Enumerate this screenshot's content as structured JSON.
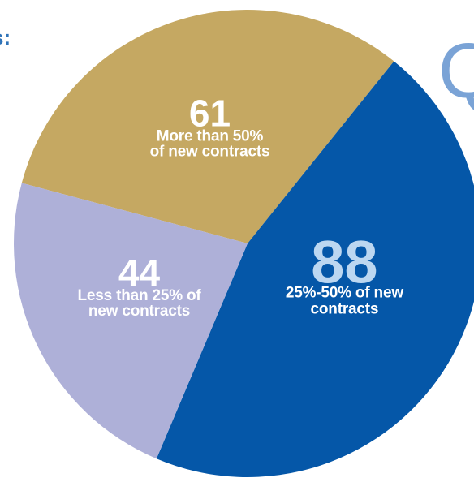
{
  "corner_text": {
    "colon": "s:",
    "q": "Q"
  },
  "chart_data": {
    "type": "pie",
    "title": "",
    "total_note": "",
    "slices": [
      {
        "value": 61,
        "label_lines": [
          "More than 50%",
          "of new contracts"
        ],
        "color": "#c5a862"
      },
      {
        "value": 88,
        "label_lines": [
          "25%-50% of new",
          "contracts"
        ],
        "color": "#0557a8"
      },
      {
        "value": 44,
        "label_lines": [
          "Less than 25% of",
          "new contracts"
        ],
        "color": "#aeb0d8"
      }
    ]
  }
}
